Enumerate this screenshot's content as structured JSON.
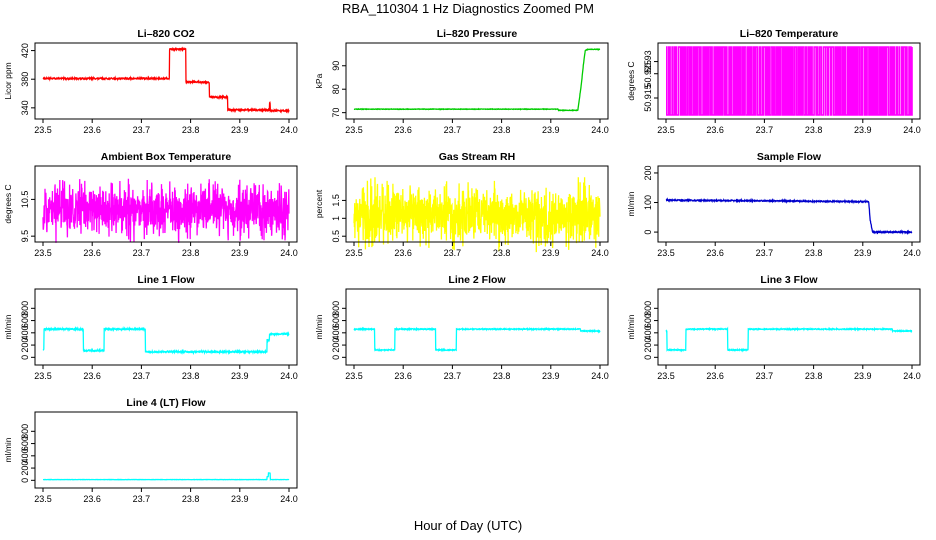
{
  "figure": {
    "title": "RBA_110304  1 Hz Diagnostics Zoomed PM",
    "xlabel": "Hour of Day (UTC)"
  },
  "chart_data": [
    {
      "type": "line",
      "title": "Li–820 CO2",
      "ylabel": "Licor ppm",
      "color": "#ff0000",
      "xlim": [
        23.5,
        24.0
      ],
      "ylim": [
        330,
        425
      ],
      "xticks": [
        23.5,
        23.6,
        23.7,
        23.8,
        23.9,
        24.0
      ],
      "yticks": [
        340,
        380,
        420
      ],
      "series": [
        {
          "style": "steps",
          "noise": 1,
          "x": [
            23.5,
            23.757,
            23.757,
            23.79,
            23.79,
            23.838,
            23.838,
            23.875,
            23.875,
            23.96,
            23.96,
            23.962,
            23.962,
            24.0
          ],
          "y": [
            381,
            381,
            422,
            422,
            376,
            376,
            355,
            355,
            337,
            337,
            347,
            347,
            336,
            336
          ]
        }
      ]
    },
    {
      "type": "line",
      "title": "Li–820 Pressure",
      "ylabel": "kPa",
      "color": "#00cc00",
      "xlim": [
        23.5,
        24.0
      ],
      "ylim": [
        69,
        98
      ],
      "xticks": [
        23.5,
        23.6,
        23.7,
        23.8,
        23.9,
        24.0
      ],
      "yticks": [
        70,
        80,
        90
      ],
      "series": [
        {
          "style": "line",
          "noise": 0.1,
          "x": [
            23.5,
            23.915,
            23.915,
            23.955,
            23.962,
            23.966,
            23.97,
            23.975,
            24.0
          ],
          "y": [
            71.5,
            71.5,
            71.0,
            71.0,
            82,
            90,
            96.5,
            97,
            97
          ]
        }
      ]
    },
    {
      "type": "line",
      "title": "Li–820 Temperature",
      "ylabel": "degrees C",
      "color": "#ff00ff",
      "xlim": [
        23.5,
        24.0
      ],
      "ylim": [
        50.908,
        50.936
      ],
      "xticks": [
        23.5,
        23.6,
        23.7,
        23.8,
        23.9,
        24.0
      ],
      "yticks": [
        50.915,
        50.925,
        50.93
      ],
      "series": [
        {
          "style": "binary",
          "low": 50.908,
          "high": 50.936,
          "transitions": 200,
          "seed": 7
        }
      ]
    },
    {
      "type": "line",
      "title": "Ambient Box Temperature",
      "ylabel": "degrees C",
      "color": "#ff00ff",
      "xlim": [
        23.5,
        24.0
      ],
      "ylim": [
        9.45,
        11.3
      ],
      "xticks": [
        23.5,
        23.6,
        23.7,
        23.8,
        23.9,
        24.0
      ],
      "yticks": [
        9.5,
        10.5
      ],
      "series": [
        {
          "style": "noise",
          "mean": 10.2,
          "amp": 0.9,
          "seed": 11
        }
      ]
    },
    {
      "type": "line",
      "title": "Gas Stream RH",
      "ylabel": "percent",
      "color": "#ffff00",
      "xlim": [
        23.5,
        24.0
      ],
      "ylim": [
        0.45,
        2.35
      ],
      "xticks": [
        23.5,
        23.6,
        23.7,
        23.8,
        23.9,
        24.0
      ],
      "yticks": [
        0.5,
        1.0,
        1.5
      ],
      "series": [
        {
          "style": "noise",
          "mean": 1.1,
          "amp": 1.05,
          "seed": 23
        }
      ]
    },
    {
      "type": "line",
      "title": "Sample Flow",
      "ylabel": "ml/min",
      "color": "#0000cc",
      "xlim": [
        23.5,
        24.0
      ],
      "ylim": [
        -20,
        210
      ],
      "xticks": [
        23.5,
        23.6,
        23.7,
        23.8,
        23.9,
        24.0
      ],
      "yticks": [
        0,
        100,
        200
      ],
      "series": [
        {
          "style": "line",
          "noise": 2,
          "x": [
            23.5,
            23.91,
            23.912,
            23.915,
            23.92,
            24.0
          ],
          "y": [
            108,
            103,
            103,
            40,
            0,
            0
          ]
        }
      ]
    },
    {
      "type": "line",
      "title": "Line 1 Flow",
      "ylabel": "ml/min",
      "color": "#00ffff",
      "xlim": [
        23.5,
        24.0
      ],
      "ylim": [
        -60,
        1050
      ],
      "xticks": [
        23.5,
        23.6,
        23.7,
        23.8,
        23.9,
        24.0
      ],
      "yticks": [
        0,
        200,
        400,
        600,
        800
      ],
      "series": [
        {
          "style": "steps",
          "noise": 12,
          "x": [
            23.5,
            23.502,
            23.502,
            23.582,
            23.582,
            23.624,
            23.624,
            23.708,
            23.708,
            23.955,
            23.955,
            23.96,
            23.96,
            24.0
          ],
          "y": [
            130,
            130,
            460,
            460,
            110,
            110,
            460,
            460,
            90,
            90,
            280,
            280,
            380,
            380
          ]
        }
      ]
    },
    {
      "type": "line",
      "title": "Line 2 Flow",
      "ylabel": "ml/min",
      "color": "#00ffff",
      "xlim": [
        23.5,
        24.0
      ],
      "ylim": [
        -60,
        1050
      ],
      "xticks": [
        23.5,
        23.6,
        23.7,
        23.8,
        23.9,
        24.0
      ],
      "yticks": [
        0,
        200,
        400,
        600,
        800
      ],
      "series": [
        {
          "style": "steps",
          "noise": 8,
          "x": [
            23.5,
            23.542,
            23.542,
            23.583,
            23.583,
            23.666,
            23.666,
            23.708,
            23.708,
            23.96,
            23.96,
            24.0
          ],
          "y": [
            460,
            460,
            120,
            120,
            460,
            460,
            120,
            120,
            460,
            460,
            430,
            430
          ]
        }
      ]
    },
    {
      "type": "line",
      "title": "Line 3 Flow",
      "ylabel": "ml/min",
      "color": "#00ffff",
      "xlim": [
        23.5,
        24.0
      ],
      "ylim": [
        -60,
        1050
      ],
      "xticks": [
        23.5,
        23.6,
        23.7,
        23.8,
        23.9,
        24.0
      ],
      "yticks": [
        0,
        200,
        400,
        600,
        800
      ],
      "series": [
        {
          "style": "steps",
          "noise": 8,
          "x": [
            23.5,
            23.502,
            23.502,
            23.54,
            23.54,
            23.625,
            23.625,
            23.667,
            23.667,
            23.96,
            23.96,
            24.0
          ],
          "y": [
            430,
            430,
            120,
            120,
            460,
            460,
            120,
            120,
            460,
            460,
            430,
            430
          ]
        }
      ]
    },
    {
      "type": "line",
      "title": "Line 4 (LT) Flow",
      "ylabel": "ml/min",
      "color": "#00ffff",
      "xlim": [
        23.5,
        24.0
      ],
      "ylim": [
        -60,
        1050
      ],
      "xticks": [
        23.5,
        23.6,
        23.7,
        23.8,
        23.9,
        24.0
      ],
      "yticks": [
        0,
        200,
        400,
        600,
        800
      ],
      "series": [
        {
          "style": "steps",
          "noise": 2,
          "x": [
            23.5,
            23.955,
            23.955,
            23.958,
            23.958,
            23.962,
            23.962,
            24.0
          ],
          "y": [
            12,
            12,
            60,
            60,
            120,
            120,
            12,
            12
          ]
        }
      ]
    }
  ]
}
